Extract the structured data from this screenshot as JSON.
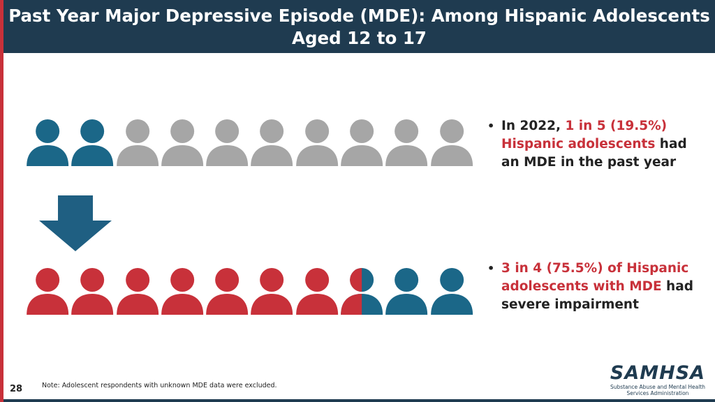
{
  "title": {
    "line1": "Past Year Major Depressive Episode (MDE): Among Hispanic Adolescents",
    "line2": "Aged 12 to 17"
  },
  "colors": {
    "teal": "#1b6788",
    "gray": "#a6a6a6",
    "red": "#c8313a",
    "navy": "#1f3b50"
  },
  "row1": {
    "people": [
      "teal",
      "teal",
      "gray",
      "gray",
      "gray",
      "gray",
      "gray",
      "gray",
      "gray",
      "gray"
    ]
  },
  "row2": {
    "people": [
      "red",
      "red",
      "red",
      "red",
      "red",
      "red",
      "red",
      "half",
      "teal",
      "teal"
    ]
  },
  "bullets": {
    "b1": {
      "prefix": "In 2022, ",
      "highlight": "1 in 5 (19.5%) Hispanic adolescents",
      "suffix": " had an MDE in the past year"
    },
    "b2": {
      "highlight": "3 in 4 (75.5%) of Hispanic adolescents with MDE",
      "suffix": " had severe impairment"
    }
  },
  "footer": {
    "page_number": "28",
    "note": "Note: Adolescent respondents with unknown MDE data were excluded.",
    "logo_name": "SAMHSA",
    "logo_sub": "Substance Abuse and Mental Health Services Administration"
  }
}
